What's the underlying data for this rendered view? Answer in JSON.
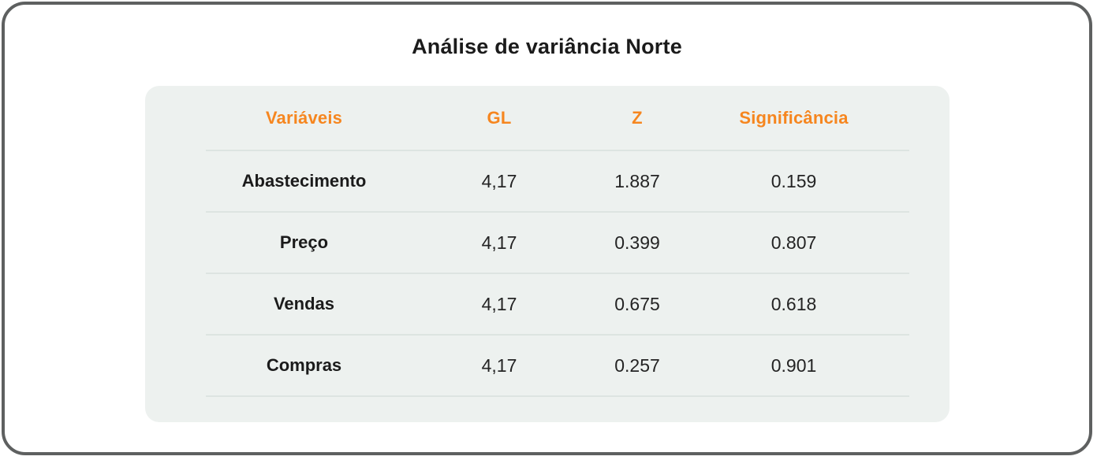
{
  "page": {
    "title": "Análise de variância Norte"
  },
  "colors": {
    "accent_orange": "#f6861f",
    "card_background": "#edf1ef",
    "divider": "#dde4e1",
    "outer_border": "#5e6060",
    "text_dark": "#1b1b1b"
  },
  "table": {
    "columns": [
      {
        "label": "Variáveis"
      },
      {
        "label": "GL"
      },
      {
        "label": "Z"
      },
      {
        "label": "Significância"
      }
    ],
    "rows": [
      {
        "variable": "Abastecimento",
        "gl": "4,17",
        "z": "1.887",
        "sig": "0.159"
      },
      {
        "variable": "Preço",
        "gl": "4,17",
        "z": "0.399",
        "sig": "0.807"
      },
      {
        "variable": "Vendas",
        "gl": "4,17",
        "z": "0.675",
        "sig": "0.618"
      },
      {
        "variable": "Compras",
        "gl": "4,17",
        "z": "0.257",
        "sig": "0.901"
      }
    ]
  },
  "chart_data": {
    "type": "table",
    "title": "Análise de variância Norte",
    "columns": [
      "Variáveis",
      "GL",
      "Z",
      "Significância"
    ],
    "rows": [
      [
        "Abastecimento",
        "4,17",
        "1.887",
        "0.159"
      ],
      [
        "Preço",
        "4,17",
        "0.399",
        "0.807"
      ],
      [
        "Vendas",
        "4,17",
        "0.675",
        "0.618"
      ],
      [
        "Compras",
        "4,17",
        "0.257",
        "0.901"
      ]
    ],
    "layout": {
      "header_text_color": "#f6861f",
      "card_background": "#edf1ef",
      "row_dividers": true
    }
  }
}
